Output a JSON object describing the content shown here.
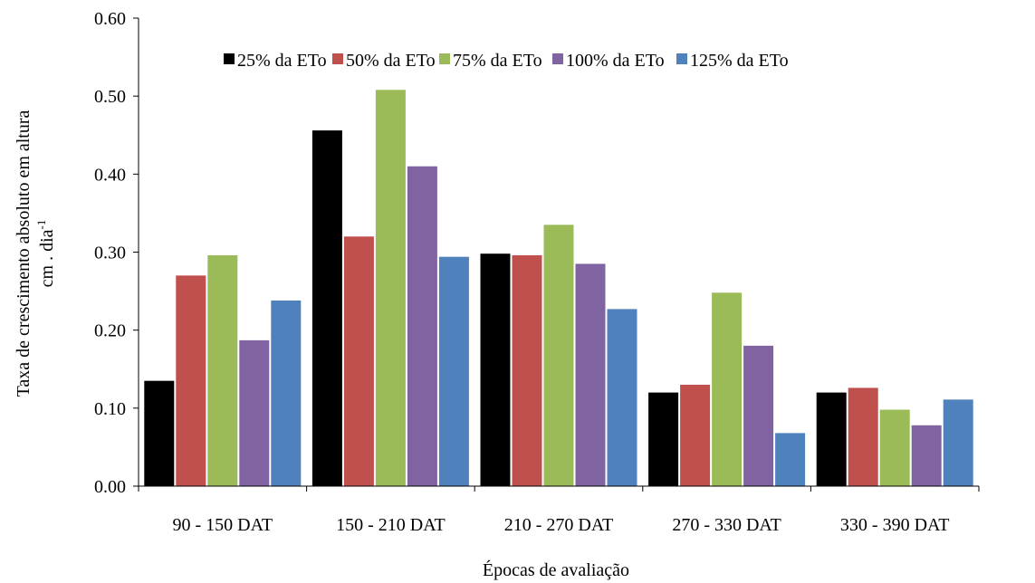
{
  "chart_data": {
    "type": "bar",
    "categories": [
      "90 - 150 DAT",
      "150 - 210 DAT",
      "210 - 270 DAT",
      "270 - 330 DAT",
      "330 - 390 DAT"
    ],
    "series": [
      {
        "name": "25% da ETo",
        "color": "#000000",
        "values": [
          0.135,
          0.456,
          0.298,
          0.12,
          0.12
        ]
      },
      {
        "name": "50% da ETo",
        "color": "#c0504d",
        "values": [
          0.27,
          0.32,
          0.296,
          0.13,
          0.126
        ]
      },
      {
        "name": "75% da ETo",
        "color": "#9bbb59",
        "values": [
          0.296,
          0.508,
          0.335,
          0.248,
          0.098
        ]
      },
      {
        "name": "100% da ETo",
        "color": "#8064a2",
        "values": [
          0.187,
          0.41,
          0.285,
          0.18,
          0.078
        ]
      },
      {
        "name": "125% da ETo",
        "color": "#4f81bd",
        "values": [
          0.238,
          0.294,
          0.227,
          0.068,
          0.111
        ]
      }
    ],
    "ylim": [
      0,
      0.6
    ],
    "yticks": [
      "0.00",
      "0.10",
      "0.20",
      "0.30",
      "0.40",
      "0.50",
      "0.60"
    ],
    "xlabel": "Épocas de avaliação",
    "ylabel_line1": "Taxa de crescimento absoluto em altura",
    "ylabel_line2": "cm . dia",
    "ylabel_superscript": "-1",
    "legend_position": "top-right",
    "grid": false
  }
}
